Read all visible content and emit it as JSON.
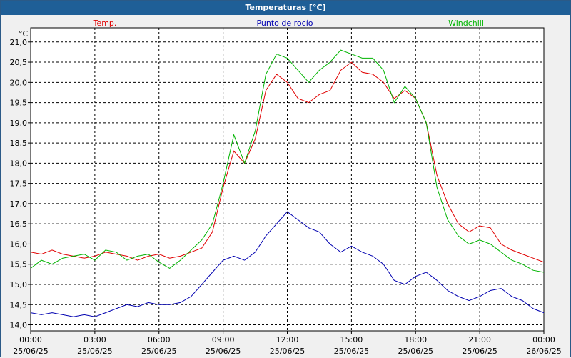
{
  "window": {
    "title": "Temperaturas [°C]"
  },
  "chart_data": {
    "type": "line",
    "unit_label": "°C",
    "ylim": [
      13.85,
      21.35
    ],
    "xlim": [
      0,
      24
    ],
    "y_ticks": [
      "14,0",
      "14,5",
      "15,0",
      "15,5",
      "16,0",
      "16,5",
      "17,0",
      "17,5",
      "18,0",
      "18,5",
      "19,0",
      "19,5",
      "20,0",
      "20,5",
      "21,0"
    ],
    "x_ticks": [
      {
        "time": "00:00",
        "date": "25/06/25"
      },
      {
        "time": "03:00",
        "date": "25/06/25"
      },
      {
        "time": "06:00",
        "date": "25/06/25"
      },
      {
        "time": "09:00",
        "date": "25/06/25"
      },
      {
        "time": "12:00",
        "date": "25/06/25"
      },
      {
        "time": "15:00",
        "date": "25/06/25"
      },
      {
        "time": "18:00",
        "date": "25/06/25"
      },
      {
        "time": "21:00",
        "date": "25/06/25"
      },
      {
        "time": "00:00",
        "date": "26/06/25"
      }
    ],
    "grid": true,
    "series": [
      {
        "name": "Temp.",
        "color": "#e00000",
        "x": [
          0,
          0.5,
          1,
          1.5,
          2,
          2.5,
          3,
          3.5,
          4,
          4.5,
          5,
          5.5,
          6,
          6.5,
          7,
          7.5,
          8,
          8.5,
          9,
          9.5,
          10,
          10.5,
          11,
          11.5,
          12,
          12.5,
          13,
          13.5,
          14,
          14.5,
          15,
          15.5,
          16,
          16.5,
          17,
          17.5,
          18,
          18.5,
          19,
          19.5,
          20,
          20.5,
          21,
          21.5,
          22,
          22.5,
          23,
          23.5,
          24
        ],
        "values": [
          15.8,
          15.75,
          15.85,
          15.75,
          15.7,
          15.65,
          15.7,
          15.8,
          15.75,
          15.7,
          15.6,
          15.7,
          15.75,
          15.65,
          15.7,
          15.8,
          15.9,
          16.3,
          17.4,
          18.3,
          18.0,
          18.6,
          19.8,
          20.2,
          20.0,
          19.6,
          19.5,
          19.7,
          19.8,
          20.3,
          20.5,
          20.25,
          20.2,
          20.0,
          19.6,
          19.8,
          19.6,
          19.0,
          17.7,
          17.0,
          16.5,
          16.3,
          16.45,
          16.4,
          16.0,
          15.85,
          15.75,
          15.65,
          15.55
        ]
      },
      {
        "name": "Punto de rocío",
        "color": "#0000b0",
        "x": [
          0,
          0.5,
          1,
          1.5,
          2,
          2.5,
          3,
          3.5,
          4,
          4.5,
          5,
          5.5,
          6,
          6.5,
          7,
          7.5,
          8,
          8.5,
          9,
          9.5,
          10,
          10.5,
          11,
          11.5,
          12,
          12.5,
          13,
          13.5,
          14,
          14.5,
          15,
          15.5,
          16,
          16.5,
          17,
          17.5,
          18,
          18.5,
          19,
          19.5,
          20,
          20.5,
          21,
          21.5,
          22,
          22.5,
          23,
          23.5,
          24
        ],
        "values": [
          14.3,
          14.25,
          14.3,
          14.25,
          14.2,
          14.25,
          14.2,
          14.3,
          14.4,
          14.5,
          14.45,
          14.55,
          14.5,
          14.5,
          14.55,
          14.7,
          15.0,
          15.3,
          15.6,
          15.7,
          15.6,
          15.8,
          16.2,
          16.5,
          16.8,
          16.6,
          16.4,
          16.3,
          16.0,
          15.8,
          15.95,
          15.8,
          15.7,
          15.5,
          15.1,
          15.0,
          15.2,
          15.3,
          15.1,
          14.85,
          14.7,
          14.6,
          14.7,
          14.85,
          14.9,
          14.7,
          14.6,
          14.4,
          14.3
        ]
      },
      {
        "name": "Windchill",
        "color": "#00b400",
        "x": [
          0,
          0.5,
          1,
          1.5,
          2,
          2.5,
          3,
          3.5,
          4,
          4.5,
          5,
          5.5,
          6,
          6.5,
          7,
          7.5,
          8,
          8.5,
          9,
          9.5,
          10,
          10.5,
          11,
          11.5,
          12,
          12.5,
          13,
          13.5,
          14,
          14.5,
          15,
          15.5,
          16,
          16.5,
          17,
          17.5,
          18,
          18.5,
          19,
          19.5,
          20,
          20.5,
          21,
          21.5,
          22,
          22.5,
          23,
          23.5,
          24
        ],
        "values": [
          15.4,
          15.6,
          15.5,
          15.65,
          15.7,
          15.75,
          15.6,
          15.85,
          15.8,
          15.6,
          15.7,
          15.75,
          15.55,
          15.4,
          15.6,
          15.85,
          16.1,
          16.5,
          17.5,
          18.7,
          18.0,
          18.8,
          20.2,
          20.7,
          20.6,
          20.3,
          20.0,
          20.3,
          20.5,
          20.8,
          20.7,
          20.6,
          20.6,
          20.3,
          19.5,
          19.9,
          19.6,
          19.0,
          17.4,
          16.6,
          16.2,
          16.0,
          16.1,
          16.0,
          15.8,
          15.6,
          15.5,
          15.35,
          15.3
        ]
      }
    ]
  }
}
